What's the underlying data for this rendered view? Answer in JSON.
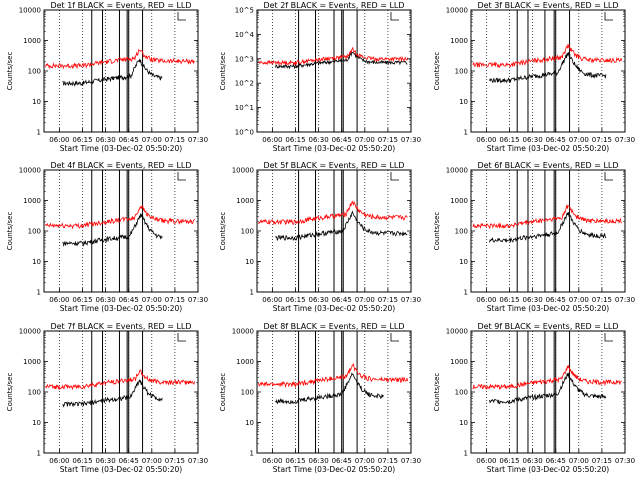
{
  "page": {
    "background": "#ffffff"
  },
  "colors": {
    "events": "#000000",
    "lld": "#ff0000",
    "axis": "#000000",
    "markers": "#000000"
  },
  "chart_data": [
    {
      "type": "line",
      "title": "Det 1f BLACK = Events, RED = LLD",
      "xlabel": "Start Time (03-Dec-02 05:50:20)",
      "ylabel": "Counts/sec",
      "yscale": "log",
      "ylim": [
        1,
        10000
      ],
      "ytick_labels": [
        "1",
        "10",
        "100",
        "1000",
        "10000"
      ],
      "x_tick_labels": [
        "06:00",
        "06:15",
        "06:30",
        "06:45",
        "07:00",
        "07:15",
        "07:30"
      ],
      "xlim_minutes": [
        -10,
        90
      ],
      "dotted_lines": [
        0,
        15,
        30,
        45,
        60,
        75,
        90
      ],
      "solid_lines": [
        21,
        28,
        39,
        44,
        45,
        54
      ],
      "legend": "top-right",
      "series": [
        {
          "color": "#000000",
          "start": 2,
          "end": 67,
          "base": 40,
          "peak": 250,
          "peak_at": 52
        },
        {
          "color": "#ff0000",
          "start": -9,
          "end": 88,
          "base": 150,
          "peak": 520,
          "peak_at": 52
        }
      ]
    },
    {
      "type": "line",
      "title": "Det 2f BLACK = Events, RED = LLD",
      "xlabel": "Start Time (03-Dec-02 05:50:20)",
      "ylabel": "Counts/sec",
      "yscale": "log",
      "ylim": [
        1,
        100000
      ],
      "ytick_labels": [
        "10^0",
        "10^1",
        "10^2",
        "10^3",
        "10^4",
        "10^5"
      ],
      "x_tick_labels": [
        "06:00",
        "06:15",
        "06:30",
        "06:45",
        "07:00",
        "07:15",
        "07:30"
      ],
      "xlim_minutes": [
        -10,
        90
      ],
      "dotted_lines": [
        0,
        15,
        30,
        45,
        60,
        75,
        90
      ],
      "solid_lines": [
        17,
        28,
        40,
        45,
        46,
        55
      ],
      "legend": "top-right",
      "series": [
        {
          "color": "#000000",
          "start": 2,
          "end": 88,
          "base": 500,
          "peak": 2000,
          "peak_at": 52
        },
        {
          "color": "#ff0000",
          "start": -9,
          "end": 88,
          "base": 700,
          "peak": 2500,
          "peak_at": 52
        }
      ]
    },
    {
      "type": "line",
      "title": "Det 3f BLACK = Events, RED = LLD",
      "xlabel": "Start Time (03-Dec-02 05:50:20)",
      "ylabel": "Counts/sec",
      "yscale": "log",
      "ylim": [
        1,
        10000
      ],
      "ytick_labels": [
        "1",
        "10",
        "100",
        "1000",
        "10000"
      ],
      "x_tick_labels": [
        "06:00",
        "06:15",
        "06:30",
        "06:45",
        "07:00",
        "07:15",
        "07:30"
      ],
      "xlim_minutes": [
        -10,
        90
      ],
      "dotted_lines": [
        0,
        15,
        30,
        45,
        60,
        75,
        90
      ],
      "solid_lines": [
        20,
        27,
        38,
        44,
        45,
        54
      ],
      "legend": "top-right",
      "series": [
        {
          "color": "#000000",
          "start": 2,
          "end": 78,
          "base": 50,
          "peak": 400,
          "peak_at": 53
        },
        {
          "color": "#ff0000",
          "start": -9,
          "end": 88,
          "base": 160,
          "peak": 700,
          "peak_at": 53
        }
      ]
    },
    {
      "type": "line",
      "title": "Det 4f BLACK = Events, RED = LLD",
      "xlabel": "Start Time (03-Dec-02 05:50:20)",
      "ylabel": "Counts/sec",
      "yscale": "log",
      "ylim": [
        1,
        10000
      ],
      "ytick_labels": [
        "1",
        "10",
        "100",
        "1000",
        "10000"
      ],
      "x_tick_labels": [
        "06:00",
        "06:15",
        "06:30",
        "06:45",
        "07:00",
        "07:15",
        "07:30"
      ],
      "xlim_minutes": [
        -10,
        90
      ],
      "dotted_lines": [
        0,
        15,
        30,
        45,
        60,
        75,
        90
      ],
      "solid_lines": [
        21,
        28,
        39,
        44,
        45,
        54
      ],
      "legend": "top-right",
      "series": [
        {
          "color": "#000000",
          "start": 2,
          "end": 67,
          "base": 40,
          "peak": 350,
          "peak_at": 53
        },
        {
          "color": "#ff0000",
          "start": -9,
          "end": 88,
          "base": 150,
          "peak": 700,
          "peak_at": 53
        }
      ]
    },
    {
      "type": "line",
      "title": "Det 5f BLACK = Events, RED = LLD",
      "xlabel": "Start Time (03-Dec-02 05:50:20)",
      "ylabel": "Counts/sec",
      "yscale": "log",
      "ylim": [
        1,
        10000
      ],
      "ytick_labels": [
        "1",
        "10",
        "100",
        "1000",
        "10000"
      ],
      "x_tick_labels": [
        "06:00",
        "06:15",
        "06:30",
        "06:45",
        "07:00",
        "07:15",
        "07:30"
      ],
      "xlim_minutes": [
        -10,
        90
      ],
      "dotted_lines": [
        0,
        15,
        30,
        45,
        60,
        75,
        90
      ],
      "solid_lines": [
        17,
        28,
        40,
        45,
        46,
        55
      ],
      "legend": "top-right",
      "series": [
        {
          "color": "#000000",
          "start": 2,
          "end": 88,
          "base": 60,
          "peak": 400,
          "peak_at": 52
        },
        {
          "color": "#ff0000",
          "start": -9,
          "end": 88,
          "base": 200,
          "peak": 950,
          "peak_at": 52
        }
      ]
    },
    {
      "type": "line",
      "title": "Det 6f BLACK = Events, RED = LLD",
      "xlabel": "Start Time (03-Dec-02 05:50:20)",
      "ylabel": "Counts/sec",
      "yscale": "log",
      "ylim": [
        1,
        10000
      ],
      "ytick_labels": [
        "1",
        "10",
        "100",
        "1000",
        "10000"
      ],
      "x_tick_labels": [
        "06:00",
        "06:15",
        "06:30",
        "06:45",
        "07:00",
        "07:15",
        "07:30"
      ],
      "xlim_minutes": [
        -10,
        90
      ],
      "dotted_lines": [
        0,
        15,
        30,
        45,
        60,
        75,
        90
      ],
      "solid_lines": [
        20,
        27,
        38,
        44,
        45,
        54
      ],
      "legend": "top-right",
      "series": [
        {
          "color": "#000000",
          "start": 2,
          "end": 78,
          "base": 50,
          "peak": 400,
          "peak_at": 53
        },
        {
          "color": "#ff0000",
          "start": -9,
          "end": 88,
          "base": 150,
          "peak": 700,
          "peak_at": 53
        }
      ]
    },
    {
      "type": "line",
      "title": "Det 7f BLACK = Events, RED = LLD",
      "xlabel": "Start Time (03-Dec-02 05:50:20)",
      "ylabel": "Counts/sec",
      "yscale": "log",
      "ylim": [
        1,
        10000
      ],
      "ytick_labels": [
        "1",
        "10",
        "100",
        "1000",
        "10000"
      ],
      "x_tick_labels": [
        "06:00",
        "06:15",
        "06:30",
        "06:45",
        "07:00",
        "07:15",
        "07:30"
      ],
      "xlim_minutes": [
        -10,
        90
      ],
      "dotted_lines": [
        0,
        15,
        30,
        45,
        60,
        75,
        90
      ],
      "solid_lines": [
        21,
        28,
        39,
        44,
        45,
        54
      ],
      "legend": "top-right",
      "series": [
        {
          "color": "#000000",
          "start": 2,
          "end": 67,
          "base": 40,
          "peak": 250,
          "peak_at": 52
        },
        {
          "color": "#ff0000",
          "start": -9,
          "end": 88,
          "base": 150,
          "peak": 500,
          "peak_at": 52
        }
      ]
    },
    {
      "type": "line",
      "title": "Det 8f BLACK = Events, RED = LLD",
      "xlabel": "Start Time (03-Dec-02 05:50:20)",
      "ylabel": "Counts/sec",
      "yscale": "log",
      "ylim": [
        1,
        10000
      ],
      "ytick_labels": [
        "1",
        "10",
        "100",
        "1000",
        "10000"
      ],
      "x_tick_labels": [
        "06:00",
        "06:15",
        "06:30",
        "06:45",
        "07:00",
        "07:15",
        "07:30"
      ],
      "xlim_minutes": [
        -10,
        90
      ],
      "dotted_lines": [
        0,
        15,
        30,
        45,
        60,
        75,
        90
      ],
      "solid_lines": [
        17,
        28,
        40,
        45,
        46,
        55
      ],
      "legend": "top-right",
      "series": [
        {
          "color": "#000000",
          "start": 2,
          "end": 72,
          "base": 50,
          "peak": 400,
          "peak_at": 52
        },
        {
          "color": "#ff0000",
          "start": -9,
          "end": 88,
          "base": 180,
          "peak": 800,
          "peak_at": 52
        }
      ]
    },
    {
      "type": "line",
      "title": "Det 9f BLACK = Events, RED = LLD",
      "xlabel": "Start Time (03-Dec-02 05:50:20)",
      "ylabel": "Counts/sec",
      "yscale": "log",
      "ylim": [
        1,
        10000
      ],
      "ytick_labels": [
        "1",
        "10",
        "100",
        "1000",
        "10000"
      ],
      "x_tick_labels": [
        "06:00",
        "06:15",
        "06:30",
        "06:45",
        "07:00",
        "07:15",
        "07:30"
      ],
      "xlim_minutes": [
        -10,
        90
      ],
      "dotted_lines": [
        0,
        15,
        30,
        45,
        60,
        75,
        90
      ],
      "solid_lines": [
        20,
        27,
        38,
        44,
        45,
        54
      ],
      "legend": "top-right",
      "series": [
        {
          "color": "#000000",
          "start": 2,
          "end": 78,
          "base": 50,
          "peak": 400,
          "peak_at": 53
        },
        {
          "color": "#ff0000",
          "start": -9,
          "end": 88,
          "base": 150,
          "peak": 700,
          "peak_at": 53
        }
      ]
    }
  ]
}
